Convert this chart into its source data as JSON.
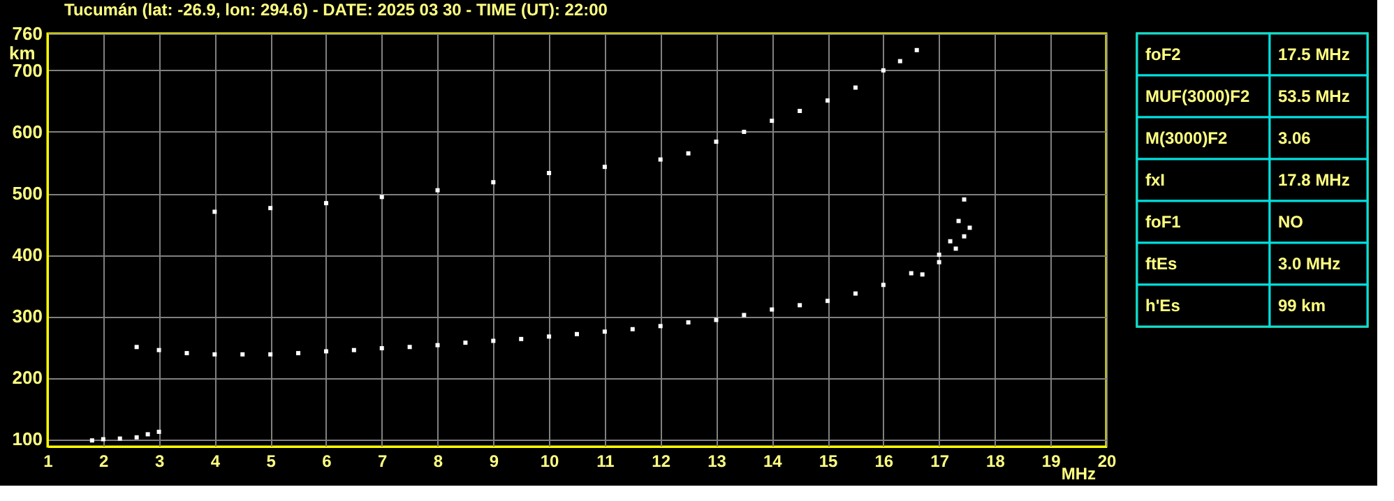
{
  "chart_data": [
    {
      "type": "scatter",
      "title": "Tucumán (lat: -26.9, lon: 294.6) - DATE: 2025 03 30 - TIME (UT): 22:00",
      "xlabel": "MHz",
      "ylabel": "km",
      "xlim": [
        1,
        20
      ],
      "ylim": [
        88,
        760
      ],
      "xticks": [
        1,
        2,
        3,
        4,
        5,
        6,
        7,
        8,
        9,
        10,
        11,
        12,
        13,
        14,
        15,
        16,
        17,
        18,
        19,
        20
      ],
      "yticks": [
        100,
        200,
        300,
        400,
        500,
        600,
        700,
        760
      ],
      "grid": true,
      "marker": "square",
      "series": [
        {
          "color": "#ffffff",
          "x": [
            1.8,
            2.0,
            2.3,
            2.6,
            2.8,
            3.0
          ],
          "values": [
            98,
            100,
            101,
            103,
            108,
            112
          ]
        },
        {
          "color": "#ffffff",
          "x": [
            2.6,
            3,
            3.5,
            4,
            4.5,
            5,
            5.5,
            6,
            6.5,
            7,
            7.5,
            8,
            8.5,
            9,
            9.5,
            10,
            10.5,
            11,
            11.5,
            12,
            12.5,
            13,
            13.5,
            14,
            14.5,
            15,
            15.5,
            16,
            16.5,
            17,
            17.2,
            17.35,
            17.45
          ],
          "values": [
            250,
            245,
            240,
            238,
            238,
            238,
            240,
            243,
            245,
            248,
            250,
            253,
            257,
            260,
            263,
            267,
            271,
            275,
            279,
            284,
            290,
            294,
            302,
            311,
            318,
            325,
            337,
            351,
            370,
            400,
            422,
            455,
            490
          ]
        },
        {
          "color": "#ffffff",
          "x": [
            16.7,
            17,
            17.3,
            17.45,
            17.55
          ],
          "values": [
            368,
            388,
            410,
            430,
            444
          ]
        },
        {
          "color": "#ffffff",
          "x": [
            4,
            5,
            6,
            7,
            8,
            9,
            10,
            11,
            12,
            12.5,
            13,
            13.5,
            14,
            14.5,
            15,
            15.5,
            16,
            16.3,
            16.6
          ],
          "values": [
            470,
            476,
            484,
            494,
            505,
            518,
            533,
            543,
            555,
            565,
            584,
            600,
            618,
            634,
            651,
            672,
            700,
            715,
            733
          ]
        }
      ]
    },
    {
      "type": "other",
      "annotations": [
        "foF2",
        "17.5 MHz",
        "MUF(3000)F2",
        "53.5 MHz",
        "M(3000)F2",
        "3.06",
        "fxI",
        "17.8 MHz",
        "foF1",
        "NO",
        "ftEs",
        "3.0 MHz",
        "h'Es",
        "99 km"
      ]
    }
  ]
}
